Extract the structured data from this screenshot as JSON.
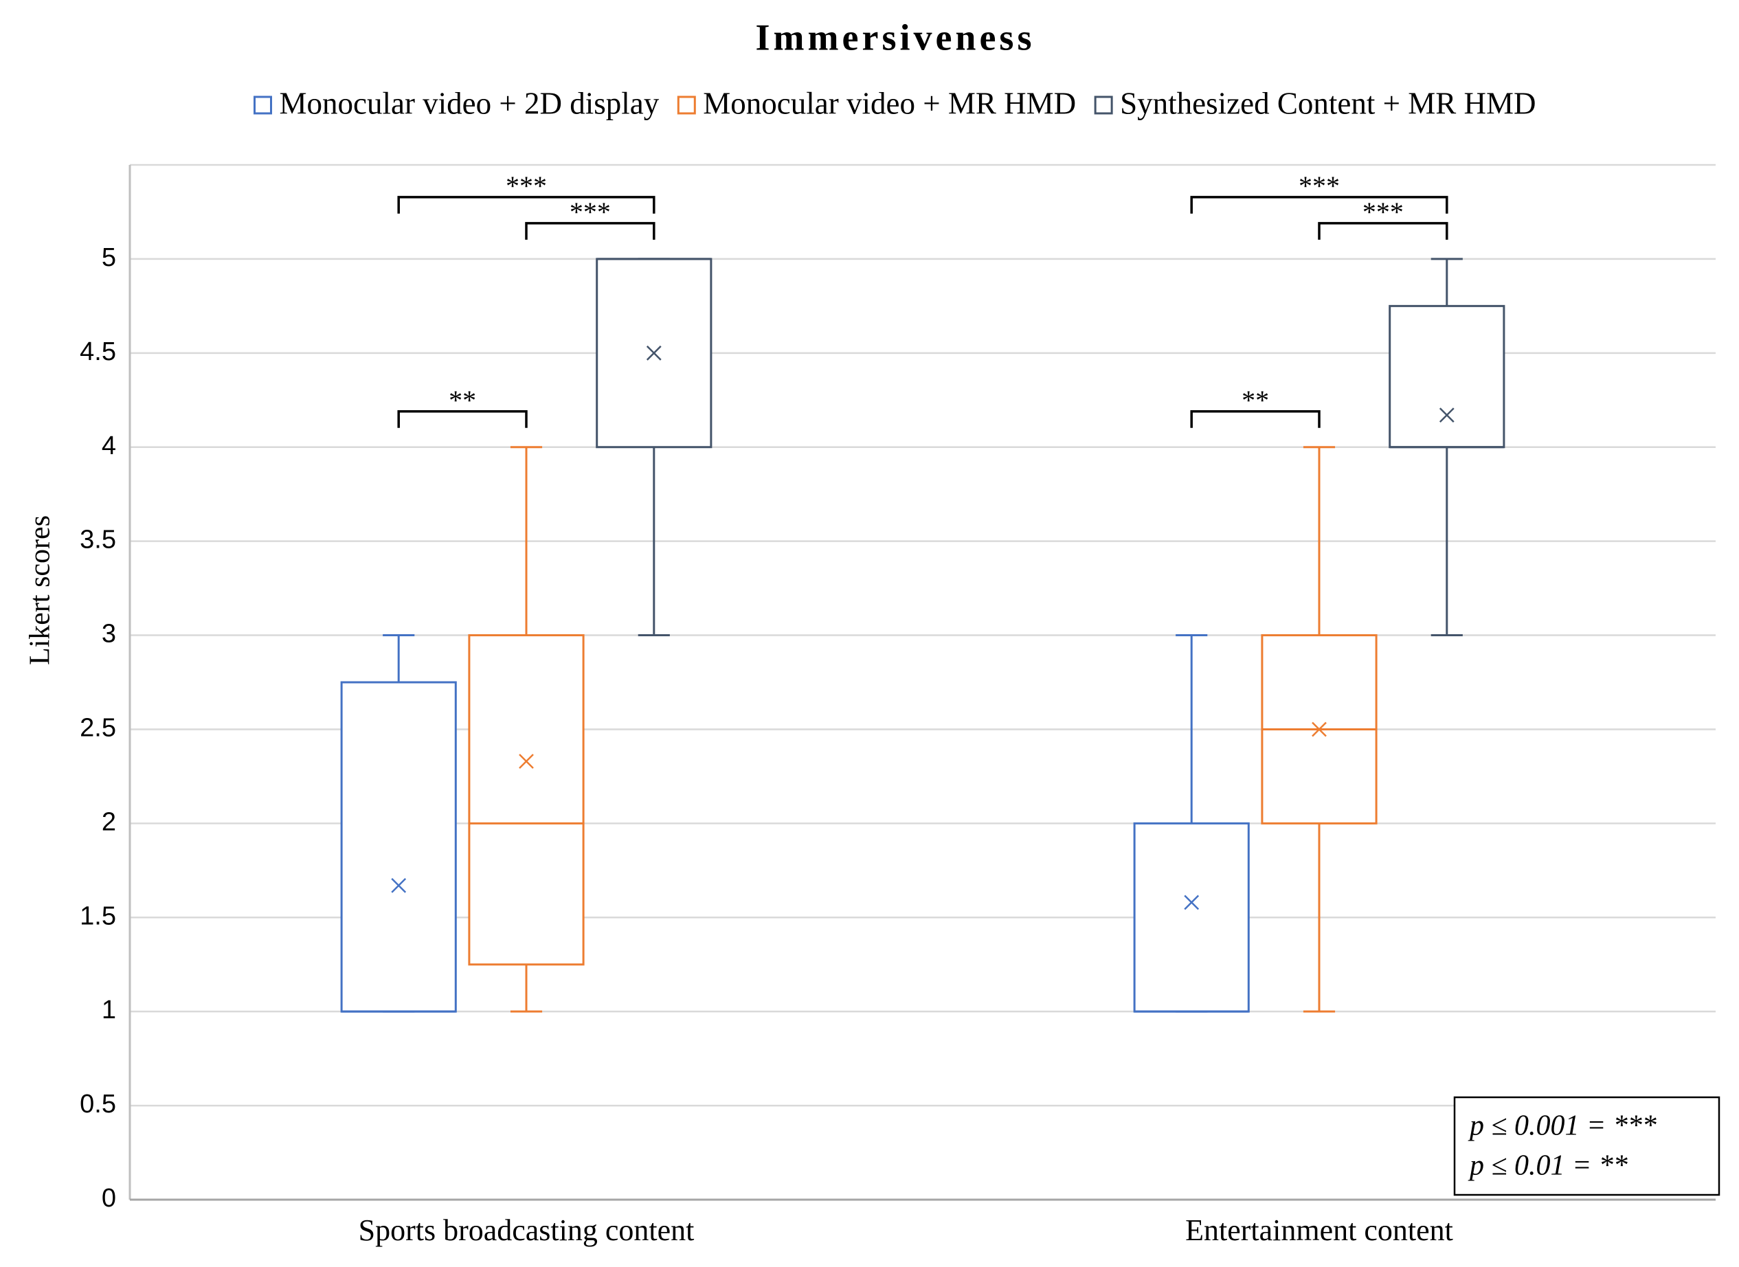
{
  "chart_data": {
    "type": "box",
    "title": "Immersiveness",
    "y_label": "Likert scores",
    "categories": [
      "Sports broadcasting content",
      "Entertainment content"
    ],
    "ylim": [
      0,
      5.5
    ],
    "yticks": [
      0,
      0.5,
      1,
      1.5,
      2,
      2.5,
      3,
      3.5,
      4,
      4.5,
      5
    ],
    "grid": true,
    "series": [
      {
        "name": "Monocular video + 2D display",
        "color": "#4472c4",
        "boxes": [
          {
            "min": 1,
            "q1": 1,
            "median": 1,
            "q3": 2.75,
            "max": 3,
            "mean": 1.67
          },
          {
            "min": 1,
            "q1": 1,
            "median": 1,
            "q3": 2,
            "max": 3,
            "mean": 1.58
          }
        ]
      },
      {
        "name": "Monocular video + MR HMD",
        "color": "#ed7d31",
        "boxes": [
          {
            "min": 1,
            "q1": 1.25,
            "median": 2,
            "q3": 3,
            "max": 4,
            "mean": 2.33
          },
          {
            "min": 1,
            "q1": 2,
            "median": 2.5,
            "q3": 3,
            "max": 4,
            "mean": 2.5
          }
        ]
      },
      {
        "name": "Synthesized Content + MR HMD",
        "color": "#44546a",
        "boxes": [
          {
            "min": 3,
            "q1": 4,
            "median": 5,
            "q3": 5,
            "max": 5,
            "mean": 4.5
          },
          {
            "min": 3,
            "q1": 4,
            "median": 4,
            "q3": 4.75,
            "max": 5,
            "mean": 4.17
          }
        ]
      }
    ],
    "significance": [
      {
        "category": 0,
        "from": 0,
        "to": 1,
        "label": "**"
      },
      {
        "category": 0,
        "from": 1,
        "to": 2,
        "label": "***"
      },
      {
        "category": 0,
        "from": 0,
        "to": 2,
        "label": "***"
      },
      {
        "category": 1,
        "from": 0,
        "to": 1,
        "label": "**"
      },
      {
        "category": 1,
        "from": 1,
        "to": 2,
        "label": "***"
      },
      {
        "category": 1,
        "from": 0,
        "to": 2,
        "label": "***"
      }
    ],
    "note": [
      "p ≤ 0.001 = ***",
      "p ≤ 0.01 = **"
    ]
  }
}
